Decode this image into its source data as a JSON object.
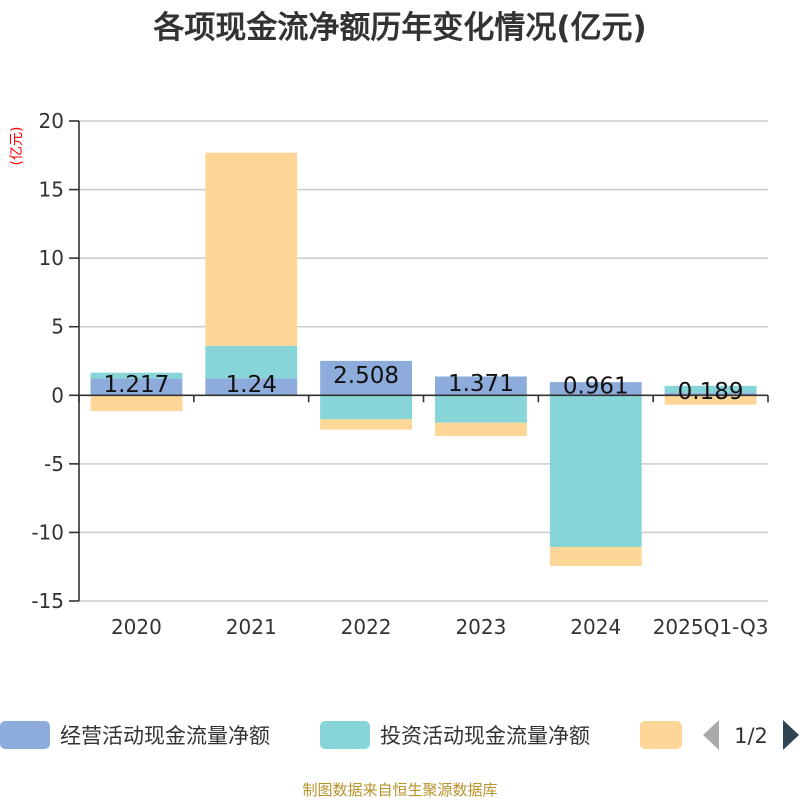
{
  "chart_data": {
    "type": "bar",
    "stacked": true,
    "title": "各项现金流净额历年变化情况(亿元)",
    "ylabel": "(亿元)",
    "xlabel": "",
    "ylim": [
      -15,
      20
    ],
    "yticks": [
      20,
      15,
      10,
      5,
      0,
      -5,
      -10,
      -15
    ],
    "grid": true,
    "categories": [
      "2020",
      "2021",
      "2022",
      "2023",
      "2024",
      "2025Q1-Q3"
    ],
    "series": [
      {
        "name": "经营活动现金流量净额",
        "color": "#8eacdb",
        "values": [
          1.217,
          1.24,
          2.508,
          1.371,
          0.961,
          0.189
        ],
        "labels": [
          "1.217",
          "1.24",
          "2.508",
          "1.371",
          "0.961",
          "0.189"
        ]
      },
      {
        "name": "投资活动现金流量净额",
        "color": "#87d5d8",
        "values": [
          0.43,
          2.36,
          -1.75,
          -2.0,
          -11.06,
          0.5
        ]
      },
      {
        "name": "",
        "color": "#fed798",
        "values": [
          -1.15,
          14.09,
          -0.75,
          -0.97,
          -1.39,
          -0.68
        ]
      }
    ],
    "legend": {
      "placement": "bottom",
      "page_indicator": "1/2"
    }
  },
  "footer": "制图数据来自恒生聚源数据库"
}
